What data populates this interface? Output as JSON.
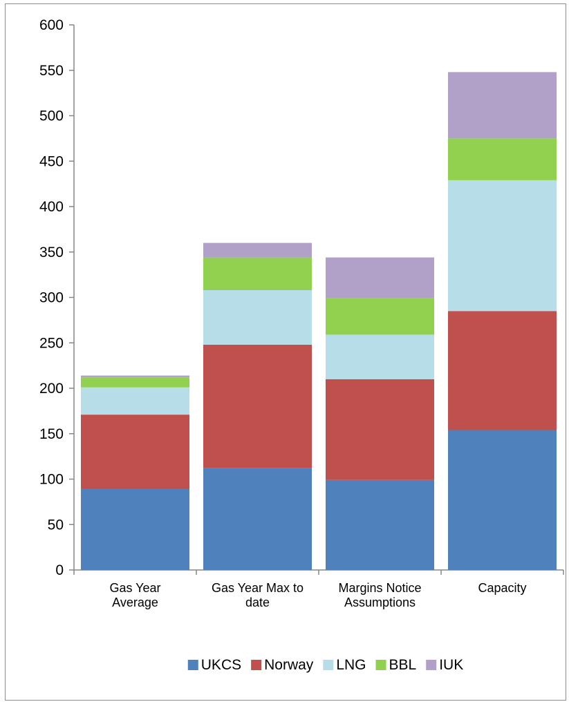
{
  "chart_data": {
    "type": "bar",
    "stacked": true,
    "categories": [
      [
        "Gas Year",
        "Average"
      ],
      [
        "Gas Year Max to",
        "date"
      ],
      [
        "Margins Notice",
        "Assumptions"
      ],
      [
        "Capacity"
      ]
    ],
    "series": [
      {
        "name": "UKCS",
        "color": "#4f81bd",
        "values": [
          89,
          112,
          99,
          154
        ]
      },
      {
        "name": "Norway",
        "color": "#c0504d",
        "values": [
          82,
          136,
          111,
          131
        ]
      },
      {
        "name": "LNG",
        "color": "#b7dde8",
        "values": [
          30,
          60,
          49,
          144
        ]
      },
      {
        "name": "BBL",
        "color": "#92d050",
        "values": [
          11,
          36,
          40,
          46
        ]
      },
      {
        "name": "IUK",
        "color": "#b1a0c7",
        "values": [
          2,
          16,
          45,
          73
        ]
      }
    ],
    "ylim": [
      0,
      600
    ],
    "yticks": [
      0,
      50,
      100,
      150,
      200,
      250,
      300,
      350,
      400,
      450,
      500,
      550,
      600
    ],
    "grid": false,
    "legend": "bottom"
  }
}
